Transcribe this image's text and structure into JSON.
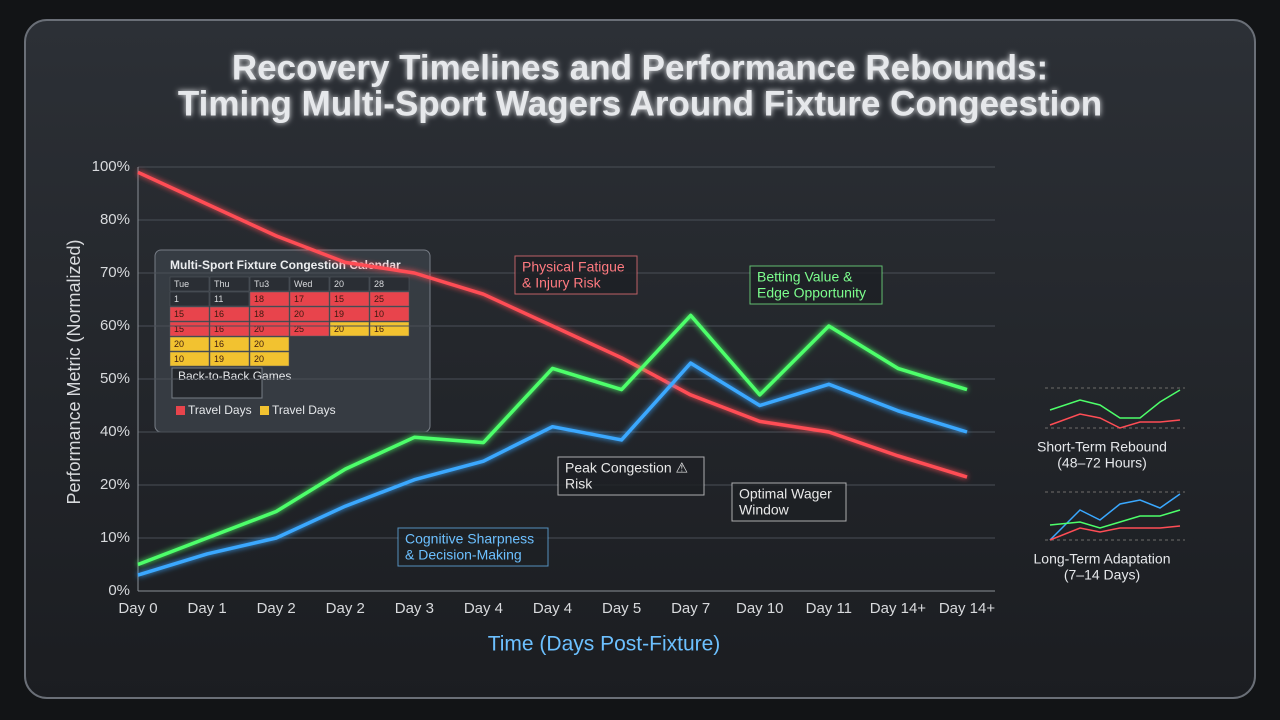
{
  "chart_data": {
    "type": "line",
    "title": [
      "Recovery Timelines and Performance Rebounds:",
      "Timing Multi-Sport Wagers Around Fixture Congeestion"
    ],
    "y_label": "Performance Metric (Normalized)",
    "x_label": "Time (Days Post-Fixture)",
    "categories": [
      "Day 0",
      "Day 1",
      "Day 2",
      "Day 2",
      "Day 3",
      "Day 4",
      "Day 4",
      "Day 5",
      "Day 7",
      "Day 10",
      "Day 11",
      "Day 14+",
      "Day 14+"
    ],
    "ylim": [
      0,
      100
    ],
    "yticks": [
      {
        "value": 0,
        "label": "0%"
      },
      {
        "value": 10,
        "label": "10%"
      },
      {
        "value": 20,
        "label": "20%"
      },
      {
        "value": 40,
        "label": "40%"
      },
      {
        "value": 50,
        "label": "50%"
      },
      {
        "value": 60,
        "label": "60%"
      },
      {
        "value": 70,
        "label": "70%"
      },
      {
        "value": 80,
        "label": "80%"
      },
      {
        "value": 100,
        "label": "100%"
      }
    ],
    "grid": true,
    "series": [
      {
        "color": "#ff4d55",
        "values": [
          98,
          86,
          77,
          72,
          70,
          66,
          60,
          54,
          47,
          42,
          40,
          31,
          23
        ]
      },
      {
        "color": "#4dff6a",
        "values": [
          5,
          10,
          15,
          26,
          38,
          36,
          52,
          48,
          62,
          47,
          60,
          52,
          48
        ]
      },
      {
        "color": "#3aa8ff",
        "values": [
          3,
          7,
          10,
          16,
          22,
          29,
          41,
          37,
          53,
          45,
          49,
          44,
          40
        ]
      }
    ],
    "annotations": [
      {
        "lines": [
          "Physical Fatigue",
          "& Injury Risk"
        ],
        "color": "#ff7a80"
      },
      {
        "lines": [
          "Betting Value &",
          "Edge Opportunity"
        ],
        "color": "#7dff8e"
      },
      {
        "lines": [
          "Peak Congestion ⚠",
          "Risk"
        ],
        "color": "#e8e8e8"
      },
      {
        "lines": [
          "Optimal Wager",
          "Window"
        ],
        "color": "#e8e8e8"
      },
      {
        "lines": [
          "Cognitive Sharpness",
          "& Decision-Making"
        ],
        "color": "#6cc0ff"
      }
    ],
    "calendar": {
      "title": "Multi-Sport Fixture Congestion Calendar",
      "rows": [
        [
          "Tue",
          "Thu",
          "Tu3",
          "Wed",
          "20",
          "28"
        ],
        [
          "1",
          "11",
          "18",
          "17",
          "15",
          "25"
        ],
        [
          "15",
          "16",
          "18",
          "20",
          "19",
          "10"
        ],
        [
          "15",
          "16",
          "20",
          "25",
          "20",
          "16"
        ],
        [
          "20",
          "16",
          "20"
        ],
        [
          "10",
          "19",
          "20"
        ]
      ],
      "legend": [
        "Back-to-Back Games",
        "Travel Days",
        "Travel Days"
      ]
    },
    "side_panels": [
      [
        "Short-Term Rebound",
        "(48–72 Hours)"
      ],
      [
        "Long-Term Adaptation",
        "(7–14 Days)"
      ]
    ]
  }
}
